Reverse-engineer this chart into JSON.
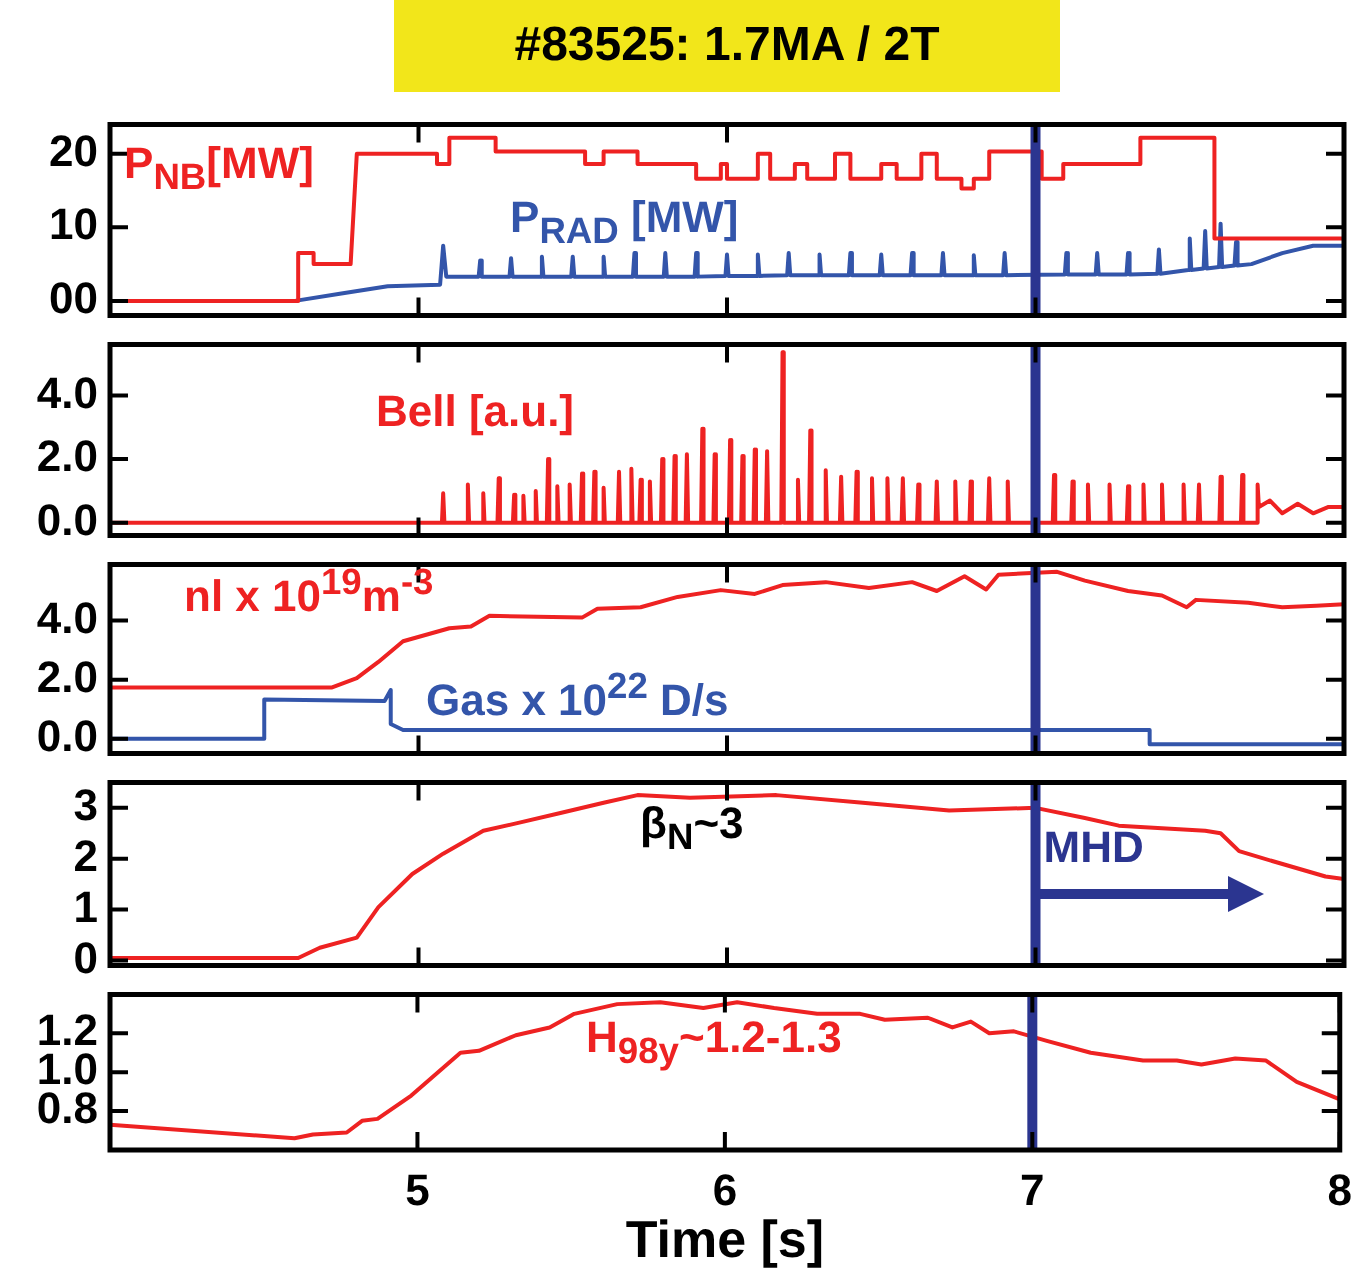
{
  "chart_data": [
    {
      "type": "line",
      "title": "#83525: 1.7MA / 2T",
      "xlim": [
        4,
        8
      ],
      "xticks": [
        5,
        6,
        7,
        8
      ],
      "ylim": [
        -2,
        24
      ],
      "yticks": [
        {
          "value": 0,
          "label": "00"
        },
        10,
        20
      ],
      "tick_labels": "y",
      "ref_lines": [
        {
          "axis": "x",
          "value": 7,
          "color": "#2b3590"
        }
      ],
      "series": [
        {
          "name": "P$_{NB}$[MW]",
          "color": "#ee2222",
          "x": [
            4.0,
            4.61,
            4.61,
            4.66,
            4.66,
            4.78,
            4.8,
            5.06,
            5.06,
            5.1,
            5.1,
            5.25,
            5.25,
            5.54,
            5.54,
            5.6,
            5.6,
            5.71,
            5.71,
            5.9,
            5.9,
            5.98,
            5.98,
            6.0,
            6.0,
            6.1,
            6.1,
            6.14,
            6.14,
            6.22,
            6.22,
            6.26,
            6.26,
            6.35,
            6.35,
            6.4,
            6.4,
            6.5,
            6.5,
            6.55,
            6.55,
            6.63,
            6.63,
            6.68,
            6.68,
            6.76,
            6.76,
            6.8,
            6.8,
            6.85,
            6.85,
            7.02,
            7.02,
            7.09,
            7.09,
            7.34,
            7.34,
            7.58,
            7.58,
            8.0
          ],
          "values": [
            0,
            0,
            6.5,
            6.5,
            5,
            5,
            20,
            20,
            18.6,
            18.6,
            22.2,
            22.2,
            20.3,
            20.3,
            18.6,
            18.6,
            20.3,
            20.3,
            18.6,
            18.6,
            16.6,
            16.6,
            18.6,
            18.6,
            16.6,
            16.6,
            20,
            20,
            16.6,
            16.6,
            18.6,
            18.6,
            16.6,
            16.6,
            20,
            20,
            16.6,
            16.6,
            18.6,
            18.6,
            16.6,
            16.6,
            20,
            20,
            16.6,
            16.6,
            15.3,
            15.3,
            16.6,
            16.6,
            20.3,
            20.3,
            16.6,
            16.6,
            18.6,
            18.6,
            22.2,
            22.2,
            8.5,
            8.5
          ]
        },
        {
          "name": "P$_{RAD}$ [MW]",
          "color": "#3355aa",
          "x": [
            4.0,
            4.6,
            4.75,
            4.9,
            5.07,
            5.08,
            5.09,
            5.195,
            5.2,
            5.205,
            5.295,
            5.3,
            5.305,
            5.395,
            5.4,
            5.405,
            5.495,
            5.5,
            5.505,
            5.595,
            5.6,
            5.605,
            5.695,
            5.7,
            5.705,
            5.795,
            5.8,
            5.805,
            5.895,
            5.9,
            5.905,
            5.995,
            6.0,
            6.005,
            6.095,
            6.1,
            6.105,
            6.195,
            6.2,
            6.205,
            6.295,
            6.3,
            6.305,
            6.395,
            6.4,
            6.405,
            6.495,
            6.5,
            6.505,
            6.595,
            6.6,
            6.605,
            6.695,
            6.7,
            6.705,
            6.795,
            6.8,
            6.805,
            6.895,
            6.9,
            6.905,
            7.095,
            7.1,
            7.105,
            7.195,
            7.2,
            7.205,
            7.295,
            7.3,
            7.305,
            7.395,
            7.4,
            7.405,
            7.495,
            7.5,
            7.505,
            7.545,
            7.55,
            7.555,
            7.595,
            7.6,
            7.605,
            7.645,
            7.65,
            7.655,
            7.7,
            7.8,
            7.9,
            8.0
          ],
          "values": [
            0,
            0,
            1,
            2,
            2.2,
            7.5,
            3.3,
            3.3,
            5.5,
            3.3,
            3.3,
            5.8,
            3.3,
            3.3,
            6,
            3.3,
            3.3,
            6,
            3.3,
            3.3,
            6,
            3.3,
            3.3,
            6.5,
            3.3,
            3.3,
            6.5,
            3.3,
            3.3,
            6.5,
            3.3,
            3.4,
            6.3,
            3.4,
            3.4,
            6.3,
            3.4,
            3.5,
            6.5,
            3.5,
            3.5,
            6.3,
            3.5,
            3.5,
            6.5,
            3.5,
            3.5,
            6.3,
            3.5,
            3.5,
            6.5,
            3.5,
            3.5,
            6.5,
            3.5,
            3.5,
            6.2,
            3.5,
            3.5,
            6.5,
            3.5,
            3.6,
            6.5,
            3.6,
            3.6,
            6.5,
            3.6,
            3.6,
            6.5,
            3.6,
            3.7,
            7,
            3.7,
            4.2,
            8.5,
            4.2,
            4.4,
            9.5,
            4.4,
            4.6,
            10.5,
            4.6,
            4.8,
            8,
            4.8,
            5,
            6.5,
            7.5,
            7.5
          ]
        }
      ]
    },
    {
      "type": "line",
      "xlim": [
        4,
        8
      ],
      "xticks": [
        5,
        6,
        7,
        8
      ],
      "ylim": [
        -0.4,
        5.6
      ],
      "yticks": [
        {
          "value": 0,
          "label": "0.0"
        },
        {
          "value": 2,
          "label": "2.0"
        },
        {
          "value": 4,
          "label": "4.0"
        }
      ],
      "tick_labels": "y",
      "ref_lines": [
        {
          "axis": "x",
          "value": 7,
          "color": "#2b3590"
        }
      ],
      "series": [
        {
          "name": "Bell [a.u.]",
          "color": "#ee2222",
          "x": [
            4.0,
            5.076,
            5.08,
            5.084,
            5.156,
            5.16,
            5.164,
            5.206,
            5.21,
            5.214,
            5.256,
            5.26,
            5.264,
            5.306,
            5.31,
            5.314,
            5.336,
            5.34,
            5.344,
            5.376,
            5.38,
            5.384,
            5.416,
            5.42,
            5.424,
            5.446,
            5.45,
            5.454,
            5.486,
            5.49,
            5.494,
            5.526,
            5.53,
            5.534,
            5.566,
            5.57,
            5.574,
            5.596,
            5.6,
            5.604,
            5.646,
            5.65,
            5.654,
            5.686,
            5.69,
            5.694,
            5.716,
            5.72,
            5.724,
            5.746,
            5.75,
            5.754,
            5.786,
            5.79,
            5.794,
            5.826,
            5.83,
            5.834,
            5.866,
            5.87,
            5.874,
            5.916,
            5.92,
            5.924,
            5.956,
            5.96,
            5.964,
            6.006,
            6.01,
            6.014,
            6.046,
            6.05,
            6.054,
            6.086,
            6.09,
            6.094,
            6.126,
            6.13,
            6.134,
            6.176,
            6.18,
            6.184,
            6.226,
            6.23,
            6.234,
            6.266,
            6.27,
            6.274,
            6.316,
            6.32,
            6.324,
            6.366,
            6.37,
            6.374,
            6.416,
            6.42,
            6.424,
            6.466,
            6.47,
            6.474,
            6.516,
            6.52,
            6.524,
            6.566,
            6.57,
            6.574,
            6.616,
            6.62,
            6.624,
            6.676,
            6.68,
            6.684,
            6.736,
            6.74,
            6.744,
            6.786,
            6.79,
            6.794,
            6.846,
            6.85,
            6.854,
            6.906,
            6.91,
            6.914,
            6.996,
            7.0,
            7.004,
            7.056,
            7.06,
            7.064,
            7.116,
            7.12,
            7.124,
            7.166,
            7.17,
            7.174,
            7.236,
            7.24,
            7.244,
            7.296,
            7.3,
            7.304,
            7.346,
            7.35,
            7.354,
            7.406,
            7.41,
            7.414,
            7.476,
            7.48,
            7.484,
            7.526,
            7.53,
            7.534,
            7.596,
            7.6,
            7.604,
            7.666,
            7.67,
            7.674,
            7.716,
            7.72,
            7.724,
            7.76,
            7.8,
            7.85,
            7.9,
            7.95,
            8.0
          ],
          "values": [
            0,
            0,
            0.93,
            0,
            0,
            1.2,
            0,
            0,
            0.93,
            0,
            0,
            1.4,
            0,
            0,
            0.88,
            0,
            0,
            0.85,
            0,
            0,
            1.0,
            0,
            0,
            2.0,
            0,
            0,
            1.15,
            0,
            0,
            1.2,
            0,
            0,
            1.55,
            0,
            0,
            1.6,
            0,
            0,
            1.1,
            0,
            0,
            1.6,
            0,
            0,
            1.7,
            0,
            0,
            1.35,
            0,
            0,
            1.3,
            0,
            0,
            2.0,
            0,
            0,
            2.1,
            0,
            0,
            2.15,
            0,
            0,
            2.95,
            0,
            0,
            2.15,
            0,
            0,
            2.6,
            0,
            0,
            2.1,
            0,
            0,
            2.3,
            0,
            0,
            2.25,
            0,
            0,
            5.35,
            0,
            0,
            1.35,
            0,
            0,
            2.9,
            0,
            0,
            1.65,
            0,
            0,
            1.45,
            0,
            0,
            1.6,
            0,
            0,
            1.4,
            0,
            0,
            1.4,
            0,
            0,
            1.4,
            0,
            0,
            1.2,
            0,
            0,
            1.3,
            0,
            0,
            1.3,
            0,
            0,
            1.3,
            0,
            0,
            1.4,
            0,
            0,
            1.3,
            0,
            0,
            null,
            0,
            0,
            1.5,
            0,
            0,
            1.3,
            0,
            0,
            1.2,
            0,
            0,
            1.2,
            0,
            0,
            1.15,
            0,
            0,
            1.2,
            0,
            0,
            1.2,
            0,
            0,
            1.2,
            0,
            0,
            1.2,
            0,
            0,
            1.45,
            0,
            0,
            1.5,
            0,
            0,
            1.2,
            0.5,
            0.7,
            0.3,
            0.6,
            0.3,
            0.5,
            0.5
          ]
        }
      ]
    },
    {
      "type": "line",
      "xlim": [
        4,
        8
      ],
      "xticks": [
        5,
        6,
        7,
        8
      ],
      "ylim": [
        -0.5,
        5.9
      ],
      "yticks": [
        {
          "value": 0,
          "label": "0.0"
        },
        {
          "value": 2,
          "label": "2.0"
        },
        {
          "value": 4,
          "label": "4.0"
        }
      ],
      "tick_labels": "y",
      "ref_lines": [
        {
          "axis": "x",
          "value": 7,
          "color": "#2b3590"
        }
      ],
      "series": [
        {
          "name": "nl x 10$^{19}$m$^{-3}$",
          "color": "#ee2222",
          "x": [
            4.0,
            4.72,
            4.8,
            4.87,
            4.95,
            5.1,
            5.17,
            5.23,
            5.53,
            5.58,
            5.72,
            5.84,
            5.98,
            6.09,
            6.18,
            6.32,
            6.46,
            6.6,
            6.68,
            6.77,
            6.84,
            6.88,
            7.07,
            7.16,
            7.3,
            7.41,
            7.49,
            7.52,
            7.69,
            7.8,
            7.91,
            8.0
          ],
          "values": [
            1.74,
            1.74,
            2.05,
            2.6,
            3.3,
            3.74,
            3.8,
            4.16,
            4.1,
            4.4,
            4.45,
            4.8,
            5.03,
            4.9,
            5.2,
            5.3,
            5.1,
            5.3,
            5.0,
            5.5,
            5.05,
            5.55,
            5.65,
            5.35,
            5.0,
            4.85,
            4.45,
            4.7,
            4.6,
            4.45,
            4.5,
            4.55
          ]
        },
        {
          "name": "Gas x 10$^{22}$ D/s",
          "color": "#3355aa",
          "x": [
            4.0,
            4.5,
            4.5,
            4.89,
            4.91,
            4.91,
            4.95,
            7.37,
            7.37,
            8.0
          ],
          "values": [
            0,
            0,
            1.33,
            1.28,
            1.65,
            0.5,
            0.3,
            0.3,
            -0.18,
            -0.18
          ]
        }
      ]
    },
    {
      "type": "line",
      "xlim": [
        4,
        8
      ],
      "xticks": [
        5,
        6,
        7,
        8
      ],
      "ylim": [
        -0.1,
        3.5
      ],
      "yticks": [
        0,
        1,
        2,
        3
      ],
      "tick_labels": "y",
      "ref_lines": [
        {
          "axis": "x",
          "value": 7,
          "color": "#2b3590"
        }
      ],
      "annotations": [
        "β$_{N}$~3",
        {
          "text": "MHD",
          "x": 7,
          "y": 1.35
        }
      ],
      "series": [
        {
          "color": "#ee2222",
          "x": [
            4.0,
            4.61,
            4.68,
            4.8,
            4.87,
            4.98,
            5.08,
            5.21,
            5.32,
            5.46,
            5.6,
            5.71,
            5.88,
            6.16,
            6.44,
            6.72,
            7.0,
            7.16,
            7.27,
            7.55,
            7.6,
            7.66,
            7.77,
            7.94,
            8.0
          ],
          "values": [
            0.05,
            0.05,
            0.25,
            0.45,
            1.05,
            1.7,
            2.1,
            2.55,
            2.7,
            2.9,
            3.1,
            3.25,
            3.2,
            3.25,
            3.1,
            2.95,
            3.0,
            2.8,
            2.65,
            2.55,
            2.5,
            2.15,
            1.95,
            1.65,
            1.6
          ]
        }
      ]
    },
    {
      "type": "line",
      "xlim": [
        4,
        8
      ],
      "xticks": [
        5,
        6,
        7,
        8
      ],
      "xlabel": "Time [s]",
      "ylim": [
        0.6,
        1.4
      ],
      "yticks": [
        0.8,
        {
          "value": 1,
          "label": "1.0"
        },
        1.2
      ],
      "ref_lines": [
        {
          "axis": "x",
          "value": 7,
          "color": "#2b3590"
        }
      ],
      "series": [
        {
          "name": "H$_{98y}$~1.2-1.3",
          "color": "#ee2222",
          "x": [
            4.0,
            4.6,
            4.66,
            4.77,
            4.82,
            4.87,
            4.98,
            5.14,
            5.2,
            5.32,
            5.43,
            5.51,
            5.65,
            5.79,
            5.93,
            6.04,
            6.16,
            6.3,
            6.44,
            6.52,
            6.66,
            6.74,
            6.8,
            6.86,
            6.94,
            7.05,
            7.19,
            7.36,
            7.47,
            7.55,
            7.66,
            7.76,
            7.86,
            8.0
          ],
          "values": [
            0.73,
            0.66,
            0.68,
            0.69,
            0.75,
            0.76,
            0.88,
            1.1,
            1.11,
            1.19,
            1.23,
            1.3,
            1.35,
            1.36,
            1.33,
            1.36,
            1.33,
            1.3,
            1.3,
            1.27,
            1.28,
            1.23,
            1.26,
            1.2,
            1.21,
            1.16,
            1.1,
            1.06,
            1.06,
            1.04,
            1.07,
            1.06,
            0.95,
            0.86
          ]
        }
      ]
    }
  ]
}
